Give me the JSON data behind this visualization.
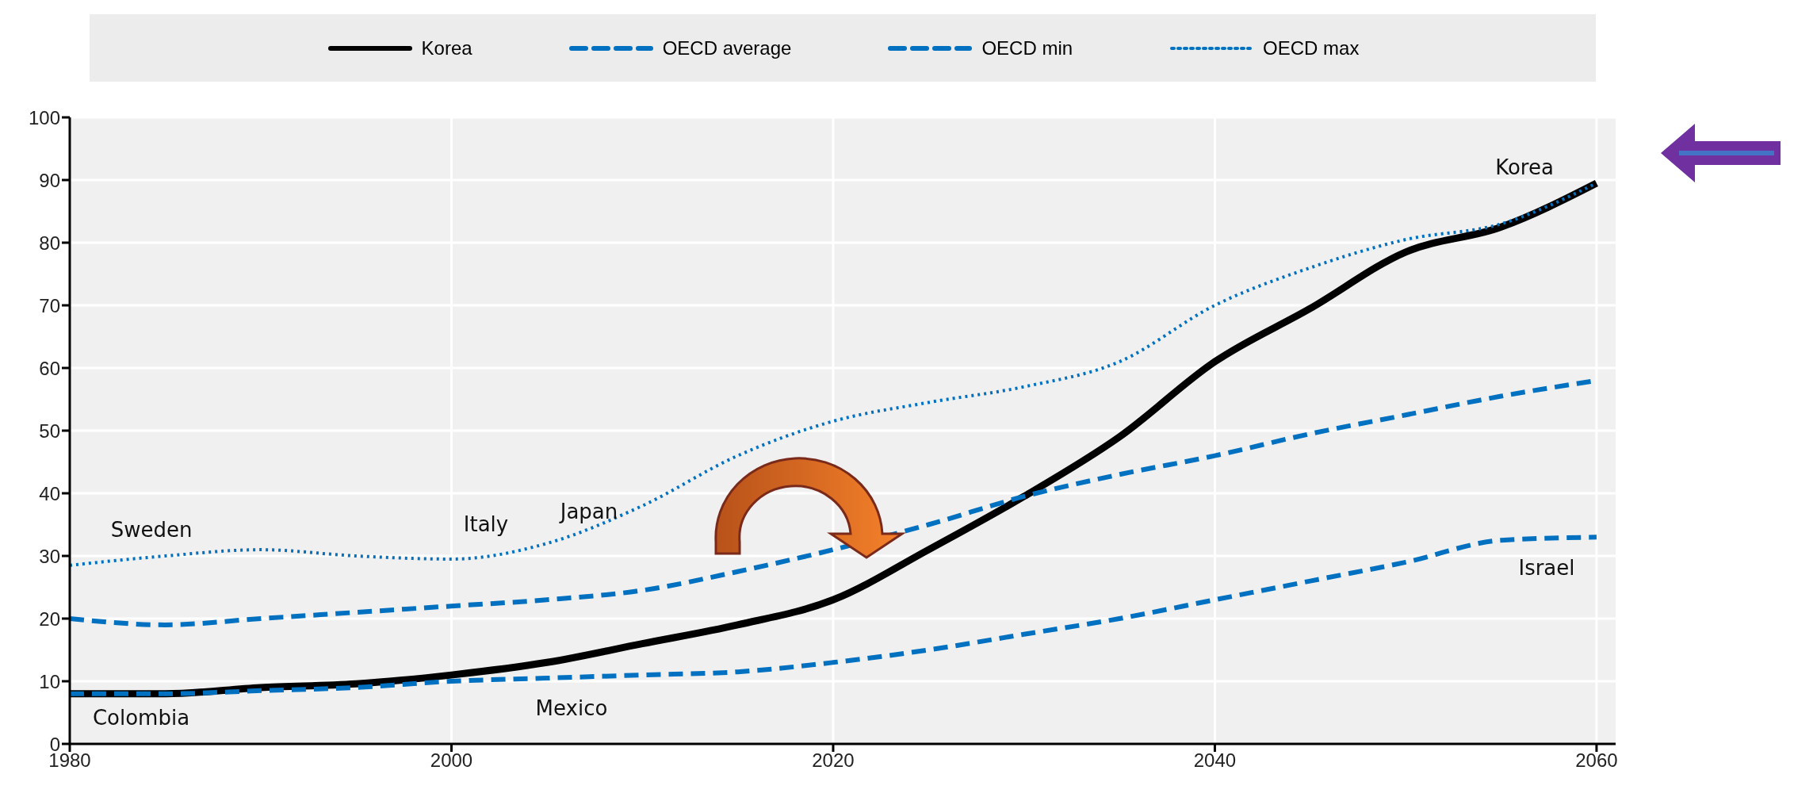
{
  "chart_data": {
    "type": "line",
    "x": [
      1980,
      1985,
      1990,
      1995,
      2000,
      2005,
      2010,
      2015,
      2020,
      2025,
      2030,
      2035,
      2040,
      2045,
      2050,
      2055,
      2060
    ],
    "series": [
      {
        "name": "Korea",
        "color": "#000000",
        "line_style": "solid",
        "values": [
          8,
          8,
          9,
          9.6,
          11,
          13,
          16,
          19,
          23,
          31,
          39.5,
          49,
          61,
          69.5,
          78.5,
          82.5,
          89.5
        ]
      },
      {
        "name": "OECD average",
        "color": "#0070c0",
        "line_style": "dashed",
        "values": [
          20,
          19,
          20,
          21,
          22,
          23,
          24.5,
          27.5,
          31,
          35,
          39.5,
          43,
          46,
          49.5,
          52.5,
          55.5,
          58
        ]
      },
      {
        "name": "OECD min",
        "color": "#0070c0",
        "line_style": "dashed",
        "values": [
          8,
          8,
          8.5,
          9,
          10,
          10.5,
          11,
          11.5,
          13,
          15,
          17.5,
          20,
          23,
          26,
          29,
          32.5,
          33
        ]
      },
      {
        "name": "OECD max",
        "color": "#0070c0",
        "line_style": "dotted",
        "values": [
          28.5,
          30,
          31,
          30,
          29.5,
          32,
          38,
          46,
          51.5,
          54.5,
          57,
          61,
          70,
          76,
          80.5,
          83,
          89.5
        ]
      }
    ],
    "xlim": [
      1980,
      2061
    ],
    "xticks": [
      1980,
      2000,
      2020,
      2040,
      2060
    ],
    "ylim": [
      0,
      100
    ],
    "yticks": [
      0,
      10,
      20,
      30,
      40,
      50,
      60,
      70,
      80,
      90,
      100
    ],
    "grid": true,
    "legend": "top",
    "marker": "none",
    "annotations": [
      "Sweden",
      "Italy",
      "Japan",
      "Colombia",
      "Mexico",
      "Israel",
      "Korea"
    ]
  }
}
